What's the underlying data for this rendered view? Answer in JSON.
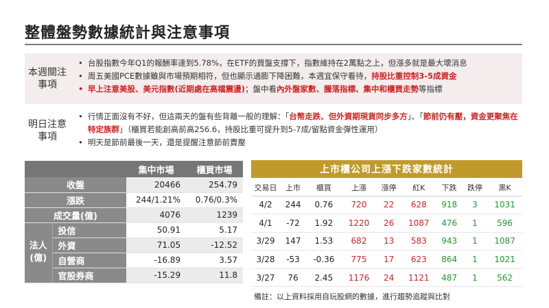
{
  "title": "整體盤勢數據統計與注意事項",
  "notes": {
    "weekly": {
      "label": "本週關注事項",
      "items": [
        {
          "text": "台股指數今年Q1的報酬率達到5.78%，在ETF的買盤支撐下，指數維持在2萬點之上，但漲多就是最大壞消息"
        },
        {
          "text_a": "周五美國PCE數據雖與市場預期相符，但也顯示通膨下降困難，本週宜保守看待，",
          "text_b": "持股比重控制3-5成資金"
        },
        {
          "text_a": "早上注意美股、美元指數(近期處在高檔震盪)",
          "text_b": "；盤中看",
          "text_c": "內外盤家數、騰落指標、集中和櫃買走勢",
          "text_d": "等指標"
        }
      ]
    },
    "tomorrow": {
      "label": "明日注意事項",
      "items": [
        {
          "text_a": "行情正面沒有不好，但這兩天的盤有些背離一般的理解：「",
          "text_b": "台幣走跌、但外資期現貨同步多方",
          "text_c": "」、「",
          "text_d": "節前仍有壓，資金更聚焦在特定族群",
          "text_e": "」（櫃買若能創高前高256.6，持股比重可提升到5-7成/留點資金彈性運用）"
        },
        {
          "text": "明天是節前最後一天，還是提醒注意節前賣壓"
        }
      ]
    }
  },
  "market": {
    "headers": [
      "",
      "集中市場",
      "櫃買市場"
    ],
    "rows": [
      {
        "label": "收盤",
        "twse": "20466",
        "otc": "254.79"
      },
      {
        "label": "漲跌",
        "twse": "244/1.21%",
        "otc": "0.76/0.3%"
      },
      {
        "label": "成交量(億)",
        "twse": "4076",
        "otc": "1239"
      }
    ],
    "group_label": "法人(億)",
    "inst_rows": [
      {
        "label": "投信",
        "twse": "50.91",
        "otc": "5.17"
      },
      {
        "label": "外資",
        "twse": "71.05",
        "otc": "-12.52"
      },
      {
        "label": "自營商",
        "twse": "-16.89",
        "otc": "3.57"
      },
      {
        "label": "官股券商",
        "twse": "-15.29",
        "otc": "11.8"
      }
    ]
  },
  "stats": {
    "title": "上市櫃公司上漲下跌家數統計",
    "headers": [
      "交易日",
      "上市",
      "櫃買",
      "上漲",
      "漲停",
      "紅K",
      "下跌",
      "跌停",
      "黑K"
    ],
    "rows": [
      {
        "date": "4/2",
        "twse": "244",
        "otc": "0.76",
        "up": "720",
        "limit_up": "22",
        "red_k": "628",
        "down": "918",
        "limit_down": "3",
        "black_k": "1031"
      },
      {
        "date": "4/1",
        "twse": "-72",
        "otc": "1.92",
        "up": "1220",
        "limit_up": "26",
        "red_k": "1087",
        "down": "476",
        "limit_down": "1",
        "black_k": "596"
      },
      {
        "date": "3/29",
        "twse": "147",
        "otc": "1.53",
        "up": "682",
        "limit_up": "13",
        "red_k": "583",
        "down": "943",
        "limit_down": "1",
        "black_k": "1087"
      },
      {
        "date": "3/28",
        "twse": "-53",
        "otc": "-0.36",
        "up": "775",
        "limit_up": "17",
        "red_k": "623",
        "down": "864",
        "limit_down": "1",
        "black_k": "1021"
      },
      {
        "date": "3/27",
        "twse": "76",
        "otc": "2.45",
        "up": "1176",
        "limit_up": "24",
        "red_k": "1121",
        "down": "487",
        "limit_down": "1",
        "black_k": "562"
      }
    ],
    "footnote": "備註：以上資料採用自玩股網的數據，進行趨勢追蹤與比對"
  },
  "colors": {
    "accent_red": "#d42020",
    "accent_green": "#1e9a2a",
    "header_gold": "#c09a2b",
    "header_gray": "#767676"
  }
}
